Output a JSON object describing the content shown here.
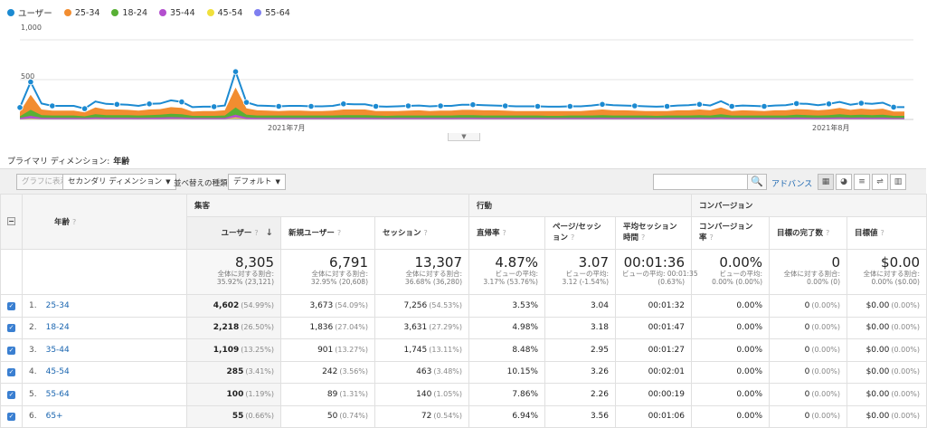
{
  "chart": {
    "y_ticks": [
      "1,000",
      "500"
    ],
    "x_ticks": [
      "2021年7月",
      "2021年8月"
    ],
    "legend": [
      {
        "label": "ユーザー",
        "color": "#1c8ad1"
      },
      {
        "label": "25-34",
        "color": "#f28d30"
      },
      {
        "label": "18-24",
        "color": "#58b035"
      },
      {
        "label": "35-44",
        "color": "#b34fce"
      },
      {
        "label": "45-54",
        "color": "#f0e03c"
      },
      {
        "label": "55-64",
        "color": "#7f7ff0"
      }
    ]
  },
  "chart_data": {
    "type": "area",
    "ylim": [
      0,
      1000
    ],
    "x_tick_labels": [
      "2021年7月",
      "2021年8月"
    ],
    "series": [
      {
        "name": "ユーザー",
        "values": [
          150,
          470,
          200,
          170,
          170,
          170,
          135,
          225,
          195,
          190,
          185,
          170,
          195,
          200,
          240,
          220,
          155,
          160,
          160,
          175,
          600,
          215,
          175,
          170,
          165,
          170,
          170,
          165,
          165,
          170,
          195,
          190,
          190,
          165,
          160,
          165,
          170,
          175,
          165,
          170,
          170,
          185,
          185,
          180,
          175,
          170,
          165,
          165,
          165,
          160,
          160,
          165,
          165,
          175,
          190,
          180,
          175,
          170,
          165,
          160,
          165,
          175,
          180,
          190,
          175,
          230,
          165,
          175,
          170,
          165,
          175,
          180,
          200,
          195,
          180,
          195,
          220,
          185,
          205,
          195,
          210,
          155,
          155
        ]
      },
      {
        "name": "25-34",
        "values": [
          95,
          310,
          125,
          110,
          110,
          110,
          90,
          150,
          125,
          125,
          120,
          110,
          125,
          130,
          155,
          145,
          100,
          105,
          105,
          115,
          400,
          140,
          115,
          110,
          105,
          110,
          110,
          105,
          105,
          110,
          125,
          125,
          125,
          105,
          105,
          105,
          110,
          115,
          105,
          110,
          110,
          120,
          120,
          115,
          115,
          110,
          105,
          105,
          105,
          105,
          105,
          105,
          105,
          115,
          125,
          115,
          115,
          110,
          105,
          105,
          105,
          115,
          115,
          125,
          115,
          150,
          105,
          115,
          110,
          105,
          115,
          115,
          130,
          125,
          115,
          125,
          145,
          120,
          135,
          125,
          135,
          100,
          100
        ]
      },
      {
        "name": "18-24",
        "values": [
          40,
          120,
          55,
          50,
          50,
          50,
          40,
          65,
          55,
          55,
          55,
          50,
          55,
          60,
          70,
          65,
          45,
          45,
          45,
          50,
          150,
          60,
          50,
          50,
          50,
          50,
          50,
          50,
          50,
          50,
          55,
          55,
          55,
          50,
          45,
          50,
          50,
          50,
          50,
          50,
          50,
          55,
          55,
          50,
          50,
          50,
          50,
          50,
          50,
          45,
          45,
          50,
          50,
          50,
          55,
          50,
          50,
          50,
          50,
          45,
          50,
          50,
          50,
          55,
          50,
          65,
          50,
          50,
          50,
          50,
          50,
          50,
          60,
          55,
          50,
          55,
          65,
          55,
          60,
          55,
          60,
          45,
          45
        ]
      },
      {
        "name": "35-44",
        "values": [
          18,
          45,
          22,
          20,
          20,
          20,
          18,
          25,
          22,
          22,
          22,
          20,
          22,
          24,
          28,
          25,
          18,
          18,
          18,
          20,
          60,
          24,
          20,
          20,
          20,
          20,
          20,
          20,
          20,
          20,
          22,
          22,
          22,
          20,
          18,
          20,
          20,
          20,
          20,
          20,
          20,
          22,
          22,
          20,
          20,
          20,
          20,
          20,
          20,
          18,
          18,
          20,
          20,
          20,
          22,
          20,
          20,
          20,
          20,
          18,
          20,
          20,
          20,
          22,
          20,
          26,
          20,
          20,
          20,
          20,
          20,
          20,
          24,
          22,
          20,
          22,
          26,
          22,
          24,
          22,
          24,
          18,
          18
        ]
      },
      {
        "name": "45-54",
        "values": [
          5,
          12,
          6,
          5,
          5,
          5,
          5,
          7,
          6,
          6,
          6,
          5,
          6,
          6,
          7,
          7,
          5,
          5,
          5,
          5,
          25,
          6,
          5,
          5,
          5,
          5,
          5,
          5,
          5,
          5,
          6,
          6,
          6,
          5,
          5,
          5,
          5,
          5,
          5,
          5,
          5,
          6,
          6,
          5,
          5,
          5,
          5,
          5,
          5,
          5,
          5,
          5,
          5,
          5,
          6,
          5,
          5,
          5,
          5,
          5,
          5,
          5,
          5,
          6,
          5,
          7,
          5,
          5,
          5,
          5,
          5,
          5,
          6,
          6,
          5,
          6,
          7,
          6,
          6,
          6,
          6,
          5,
          5
        ]
      },
      {
        "name": "55-64",
        "values": [
          2,
          5,
          2,
          2,
          2,
          2,
          2,
          3,
          2,
          2,
          2,
          2,
          2,
          2,
          3,
          3,
          2,
          2,
          2,
          2,
          8,
          2,
          2,
          2,
          2,
          2,
          2,
          2,
          2,
          2,
          2,
          2,
          2,
          2,
          2,
          2,
          2,
          2,
          2,
          2,
          2,
          2,
          2,
          2,
          2,
          2,
          2,
          2,
          2,
          2,
          2,
          2,
          2,
          2,
          2,
          2,
          2,
          2,
          2,
          2,
          2,
          2,
          2,
          2,
          2,
          3,
          2,
          2,
          2,
          2,
          2,
          2,
          2,
          2,
          2,
          2,
          3,
          2,
          2,
          2,
          2,
          2,
          2
        ]
      }
    ]
  },
  "dimension": {
    "label": "プライマリ ディメンション:",
    "value": "年齢"
  },
  "toolbar": {
    "graph_btn": "グラフに表示",
    "secondary": "セカンダリ ディメンション",
    "sort_label": "並べ替えの種類:",
    "sort_value": "デフォルト",
    "advanced": "アドバンス"
  },
  "table": {
    "groups": [
      "集客",
      "行動",
      "コンバージョン"
    ],
    "dim_header": "年齢",
    "columns": [
      "ユーザー",
      "新規ユーザー",
      "セッション",
      "直帰率",
      "ページ/セッション",
      "平均セッション時間",
      "コンバージョン率",
      "目標の完了数",
      "目標値"
    ],
    "totals": [
      {
        "value": "8,305",
        "sub1": "全体に対する割合:",
        "sub2": "35.92% (23,121)"
      },
      {
        "value": "6,791",
        "sub1": "全体に対する割合:",
        "sub2": "32.95% (20,608)"
      },
      {
        "value": "13,307",
        "sub1": "全体に対する割合:",
        "sub2": "36.68% (36,280)"
      },
      {
        "value": "4.87%",
        "sub1": "ビューの平均:",
        "sub2": "3.17% (53.76%)"
      },
      {
        "value": "3.07",
        "sub1": "ビューの平均:",
        "sub2": "3.12 (-1.54%)"
      },
      {
        "value": "00:01:36",
        "sub1": "ビューの平均: 00:01:35",
        "sub2": "(0.63%)"
      },
      {
        "value": "0.00%",
        "sub1": "ビューの平均:",
        "sub2": "0.00% (0.00%)"
      },
      {
        "value": "0",
        "sub1": "全体に対する割合:",
        "sub2": "0.00% (0)"
      },
      {
        "value": "$0.00",
        "sub1": "全体に対する割合:",
        "sub2": "0.00% ($0.00)"
      }
    ],
    "rows": [
      {
        "num": "1.",
        "dim": "25-34",
        "users": "4,602",
        "users_pct": "(54.99%)",
        "new": "3,673",
        "new_pct": "(54.09%)",
        "sess": "7,256",
        "sess_pct": "(54.53%)",
        "bounce": "3.53%",
        "pps": "3.04",
        "dur": "00:01:32",
        "cr": "0.00%",
        "goal": "0",
        "goal_pct": "(0.00%)",
        "gv": "$0.00",
        "gv_pct": "(0.00%)"
      },
      {
        "num": "2.",
        "dim": "18-24",
        "users": "2,218",
        "users_pct": "(26.50%)",
        "new": "1,836",
        "new_pct": "(27.04%)",
        "sess": "3,631",
        "sess_pct": "(27.29%)",
        "bounce": "4.98%",
        "pps": "3.18",
        "dur": "00:01:47",
        "cr": "0.00%",
        "goal": "0",
        "goal_pct": "(0.00%)",
        "gv": "$0.00",
        "gv_pct": "(0.00%)"
      },
      {
        "num": "3.",
        "dim": "35-44",
        "users": "1,109",
        "users_pct": "(13.25%)",
        "new": "901",
        "new_pct": "(13.27%)",
        "sess": "1,745",
        "sess_pct": "(13.11%)",
        "bounce": "8.48%",
        "pps": "2.95",
        "dur": "00:01:27",
        "cr": "0.00%",
        "goal": "0",
        "goal_pct": "(0.00%)",
        "gv": "$0.00",
        "gv_pct": "(0.00%)"
      },
      {
        "num": "4.",
        "dim": "45-54",
        "users": "285",
        "users_pct": "(3.41%)",
        "new": "242",
        "new_pct": "(3.56%)",
        "sess": "463",
        "sess_pct": "(3.48%)",
        "bounce": "10.15%",
        "pps": "3.26",
        "dur": "00:02:01",
        "cr": "0.00%",
        "goal": "0",
        "goal_pct": "(0.00%)",
        "gv": "$0.00",
        "gv_pct": "(0.00%)"
      },
      {
        "num": "5.",
        "dim": "55-64",
        "users": "100",
        "users_pct": "(1.19%)",
        "new": "89",
        "new_pct": "(1.31%)",
        "sess": "140",
        "sess_pct": "(1.05%)",
        "bounce": "7.86%",
        "pps": "2.26",
        "dur": "00:00:19",
        "cr": "0.00%",
        "goal": "0",
        "goal_pct": "(0.00%)",
        "gv": "$0.00",
        "gv_pct": "(0.00%)"
      },
      {
        "num": "6.",
        "dim": "65+",
        "users": "55",
        "users_pct": "(0.66%)",
        "new": "50",
        "new_pct": "(0.74%)",
        "sess": "72",
        "sess_pct": "(0.54%)",
        "bounce": "6.94%",
        "pps": "3.56",
        "dur": "00:01:06",
        "cr": "0.00%",
        "goal": "0",
        "goal_pct": "(0.00%)",
        "gv": "$0.00",
        "gv_pct": "(0.00%)"
      }
    ]
  }
}
